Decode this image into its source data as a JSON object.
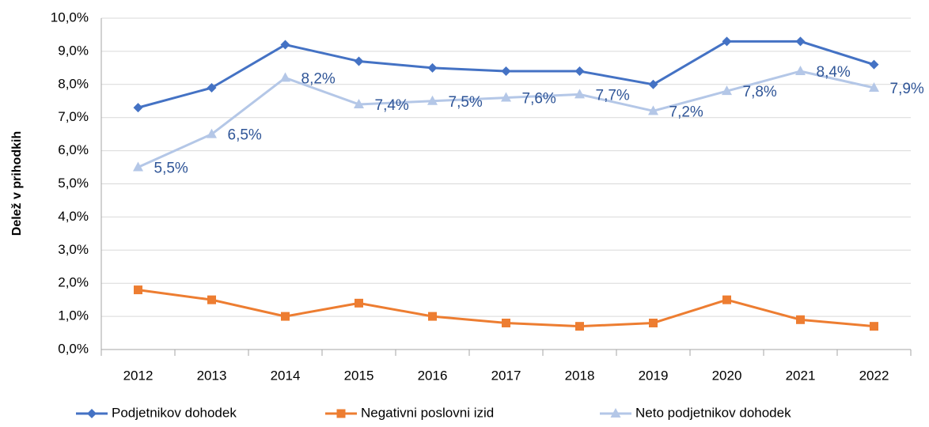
{
  "chart_data": {
    "type": "line",
    "y_label": "Delež v prihodkih",
    "categories": [
      "2012",
      "2013",
      "2014",
      "2015",
      "2016",
      "2017",
      "2018",
      "2019",
      "2020",
      "2021",
      "2022"
    ],
    "series": [
      {
        "name": "Podjetnikov dohodek",
        "color": "#4472c4",
        "marker": "diamond",
        "values": [
          7.3,
          7.9,
          9.2,
          8.7,
          8.5,
          8.4,
          8.4,
          8.0,
          9.3,
          9.3,
          8.6
        ]
      },
      {
        "name": "Negativni poslovni izid",
        "color": "#ed7d31",
        "marker": "square",
        "values": [
          1.8,
          1.5,
          1.0,
          1.4,
          1.0,
          0.8,
          0.7,
          0.8,
          1.5,
          0.9,
          0.7
        ]
      },
      {
        "name": "Neto podjetnikov dohodek",
        "color": "#b4c7e7",
        "marker": "triangle",
        "values": [
          5.5,
          6.5,
          8.2,
          7.4,
          7.5,
          7.6,
          7.7,
          7.2,
          7.8,
          8.4,
          7.9
        ],
        "value_labels": [
          "5,5%",
          "6,5%",
          "8,2%",
          "7,4%",
          "7,5%",
          "7,6%",
          "7,7%",
          "7,2%",
          "7,8%",
          "8,4%",
          "7,9%"
        ]
      }
    ],
    "ylim": [
      0,
      10
    ],
    "yticks": [
      {
        "value": 0,
        "label": "0,0%"
      },
      {
        "value": 1,
        "label": "1,0%"
      },
      {
        "value": 2,
        "label": "2,0%"
      },
      {
        "value": 3,
        "label": "3,0%"
      },
      {
        "value": 4,
        "label": "4,0%"
      },
      {
        "value": 5,
        "label": "5,0%"
      },
      {
        "value": 6,
        "label": "6,0%"
      },
      {
        "value": 7,
        "label": "7,0%"
      },
      {
        "value": 8,
        "label": "8,0%"
      },
      {
        "value": 9,
        "label": "9,0%"
      },
      {
        "value": 10,
        "label": "10,0%"
      }
    ],
    "grid": true,
    "legend": "bottom"
  }
}
